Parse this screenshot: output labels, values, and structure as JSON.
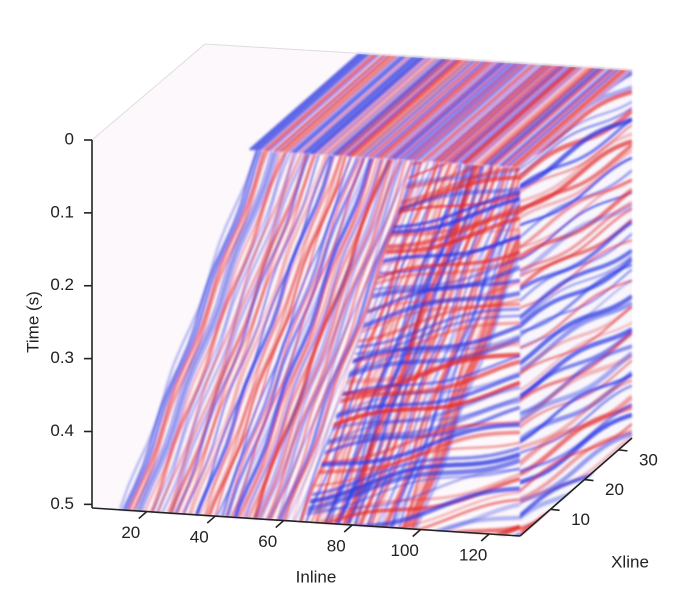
{
  "chart_data": {
    "type": "seismic-cube",
    "xlabel": "Inline",
    "ylabel": "Time (s)",
    "zlabel": "Xline",
    "xlim": [
      4,
      129
    ],
    "xticks": [
      20,
      40,
      60,
      80,
      100,
      120
    ],
    "ylim": [
      0,
      0.505
    ],
    "yticks": [
      0,
      0.1,
      0.2,
      0.3,
      0.4,
      0.5
    ],
    "zlim": [
      1,
      34
    ],
    "zticks": [
      10,
      20,
      30
    ],
    "colors": [
      "#e02828",
      "#2a36e0"
    ]
  }
}
